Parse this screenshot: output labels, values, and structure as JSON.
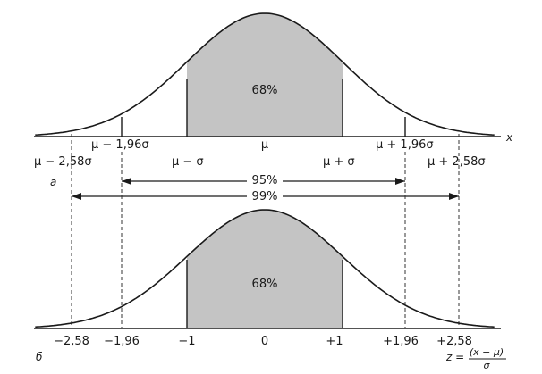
{
  "panel_a": {
    "panel_label": "а",
    "axis_var": "x",
    "mu_label": "μ",
    "center_pct": "68%",
    "labels": {
      "m258": "μ − 2,58σ",
      "m196": "μ − 1,96σ",
      "m1": "μ − σ",
      "p1": "μ + σ",
      "p196": "μ + 1,96σ",
      "p258": "μ + 2,58σ"
    }
  },
  "ranges": {
    "r95": "95%",
    "r99": "99%"
  },
  "panel_b": {
    "panel_label": "б",
    "center_pct": "68%",
    "ticks": {
      "m258": "−2,58",
      "m196": "−1,96",
      "m1": "−1",
      "zero": "0",
      "p1": "+1",
      "p196": "+1,96",
      "p258": "+2,58"
    },
    "z_formula": {
      "lhs": "z =",
      "numerator": "(x − μ)",
      "denominator": "σ"
    }
  },
  "colors": {
    "line": "#1a1a1a",
    "shade": "#c4c4c4",
    "dashed": "#333333"
  }
}
